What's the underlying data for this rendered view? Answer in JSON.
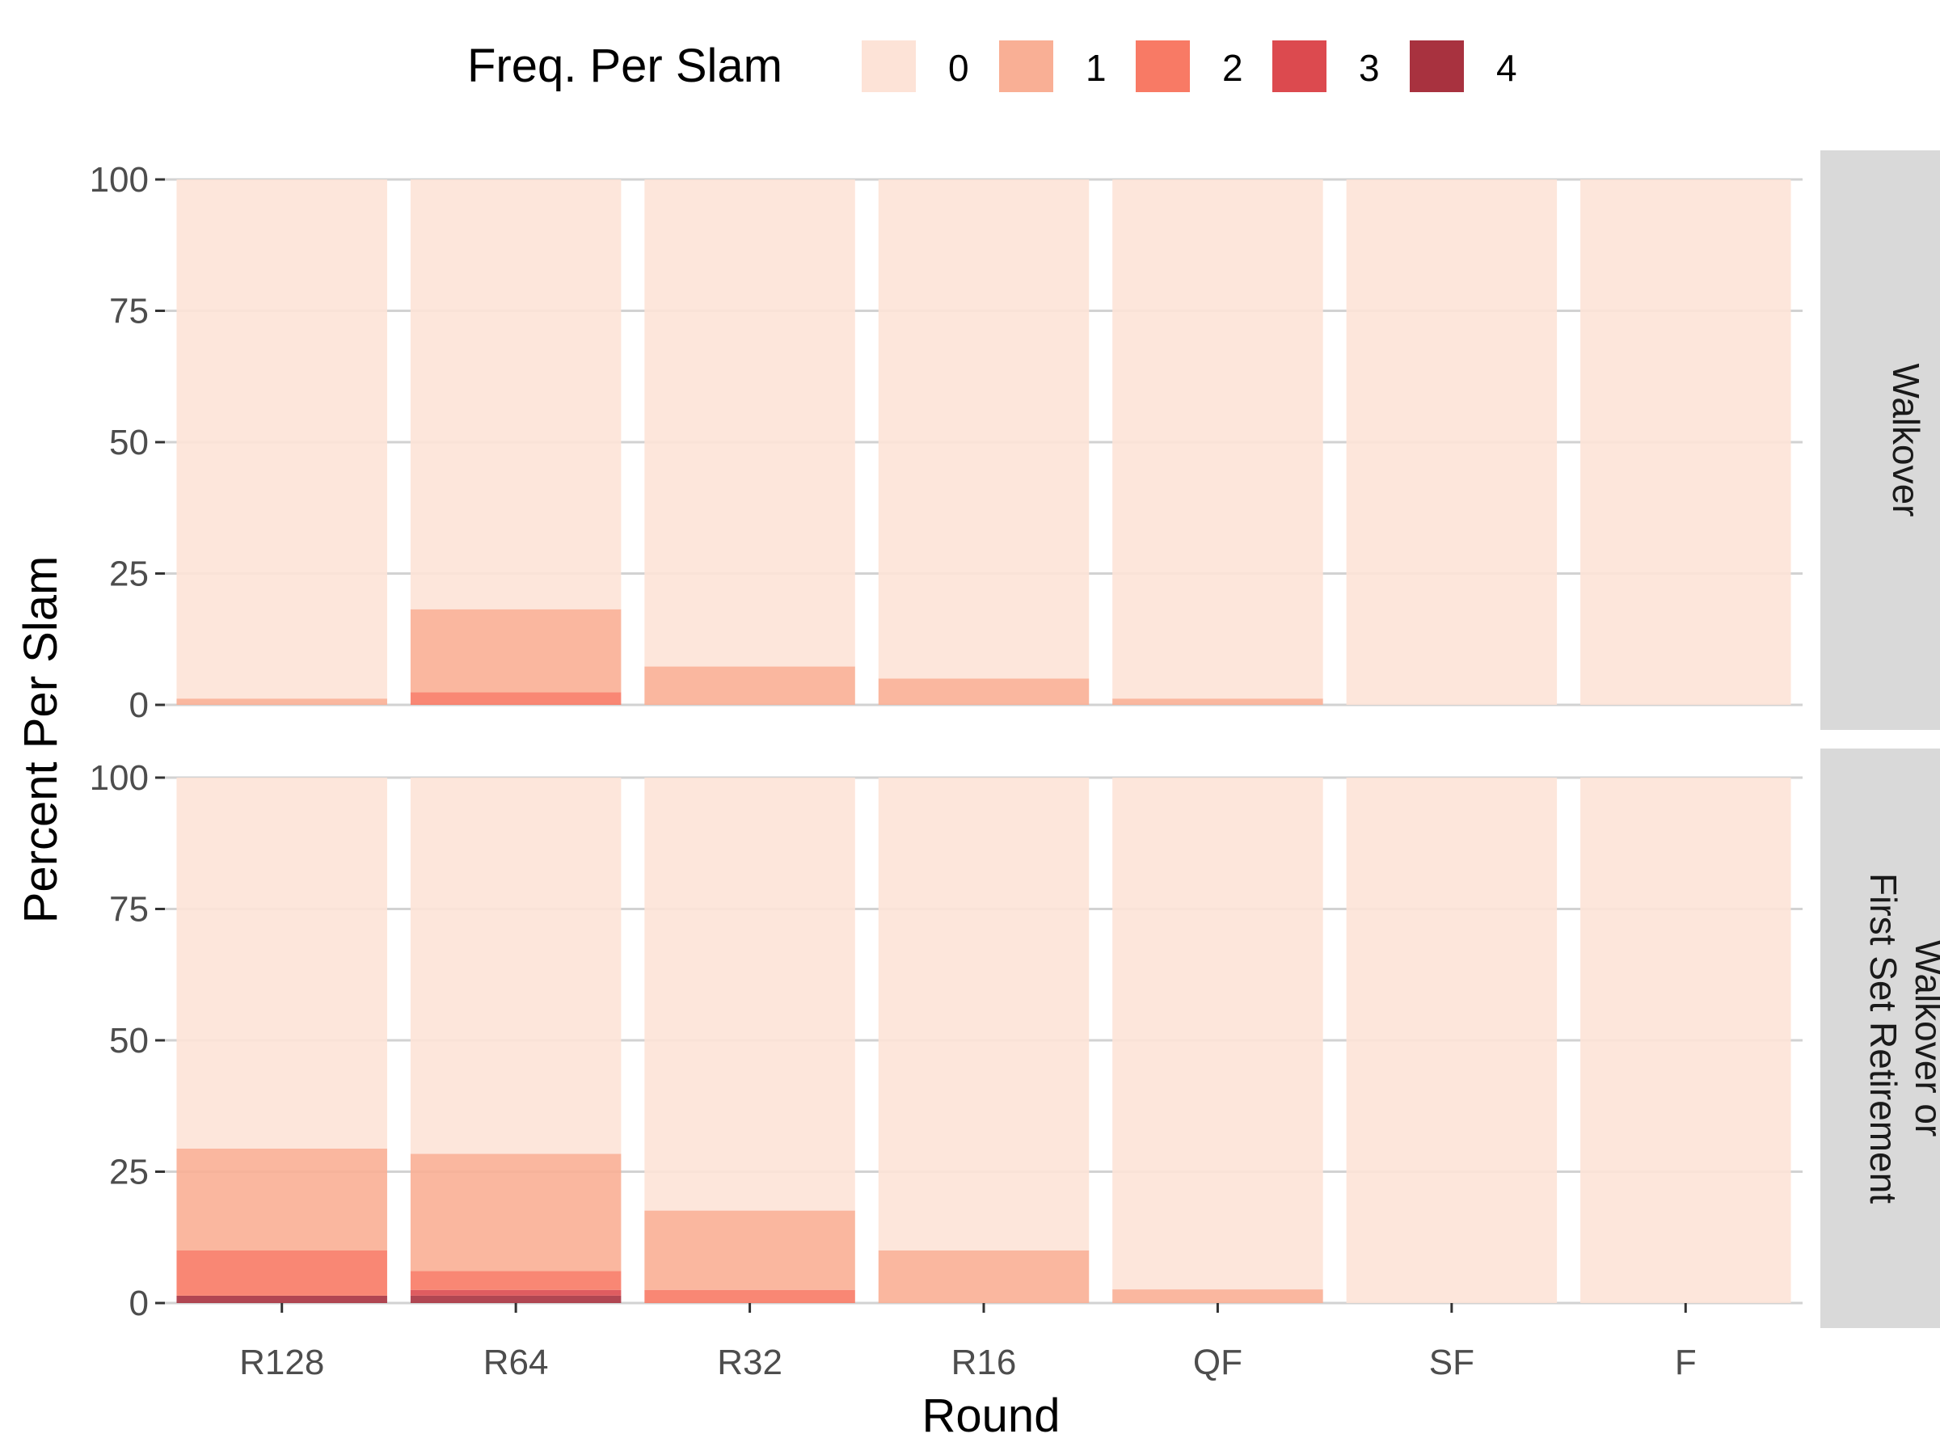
{
  "chart_data": {
    "type": "bar",
    "stacked": true,
    "xlabel": "Round",
    "ylabel": "Percent Per Slam",
    "ylim": [
      0,
      100
    ],
    "yticks": [
      0,
      25,
      50,
      75,
      100
    ],
    "grid": true,
    "legend": {
      "title": "Freq. Per Slam",
      "position": "top",
      "entries": [
        "0",
        "1",
        "2",
        "3",
        "4"
      ],
      "colors": [
        "#fde3d7",
        "#f9af95",
        "#f87a65",
        "#dc4a4f",
        "#a8323f"
      ]
    },
    "categories": [
      "R128",
      "R64",
      "R32",
      "R16",
      "QF",
      "SF",
      "F"
    ],
    "facets": [
      {
        "label": [
          "Walkover"
        ],
        "series": [
          {
            "name": "0",
            "values": [
              98.8,
              81.8,
              92.7,
              95.0,
              98.8,
              100,
              100
            ]
          },
          {
            "name": "1",
            "values": [
              1.2,
              15.8,
              7.3,
              5.0,
              1.2,
              0,
              0
            ]
          },
          {
            "name": "2",
            "values": [
              0,
              2.4,
              0,
              0,
              0,
              0,
              0
            ]
          },
          {
            "name": "3",
            "values": [
              0,
              0,
              0,
              0,
              0,
              0,
              0
            ]
          },
          {
            "name": "4",
            "values": [
              0,
              0,
              0,
              0,
              0,
              0,
              0
            ]
          }
        ]
      },
      {
        "label": [
          "Walkover or",
          "First Set Retirement"
        ],
        "series": [
          {
            "name": "0",
            "values": [
              70.6,
              71.6,
              82.4,
              90.0,
              97.4,
              100,
              100
            ]
          },
          {
            "name": "1",
            "values": [
              19.4,
              22.3,
              15.1,
              10.0,
              2.6,
              0,
              0
            ]
          },
          {
            "name": "2",
            "values": [
              8.6,
              3.6,
              2.5,
              0,
              0,
              0,
              0
            ]
          },
          {
            "name": "3",
            "values": [
              0,
              1.1,
              0,
              0,
              0,
              0,
              0
            ]
          },
          {
            "name": "4",
            "values": [
              1.4,
              1.4,
              0,
              0,
              0,
              0,
              0
            ]
          }
        ]
      }
    ]
  }
}
